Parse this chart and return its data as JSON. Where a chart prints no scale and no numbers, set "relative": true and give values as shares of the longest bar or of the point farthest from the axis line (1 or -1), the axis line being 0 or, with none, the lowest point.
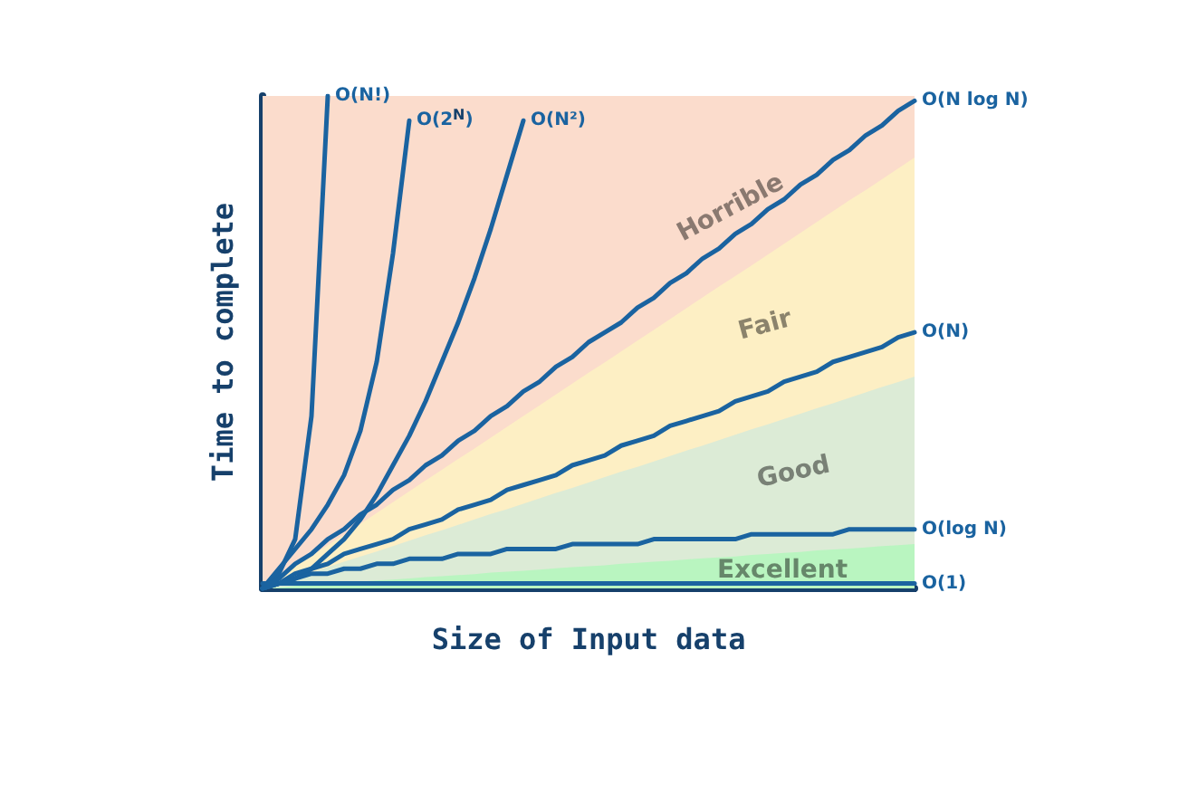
{
  "chart_data": {
    "type": "line",
    "relative": true,
    "xlabel": "Size of Input data",
    "ylabel": "Time to complete",
    "legend": false,
    "grid": false,
    "marker": "none",
    "line_style": "solid",
    "bands": [
      {
        "axis": "y",
        "from": 0,
        "to": 1,
        "label": "Horrible",
        "color": "#fbdccc"
      }
    ],
    "categories": [
      null,
      null,
      null,
      null,
      null,
      null,
      null,
      null,
      null,
      null,
      null,
      null,
      null,
      null,
      null,
      null,
      null,
      null,
      null,
      null,
      null,
      null,
      null,
      null,
      null,
      null,
      null,
      null,
      null,
      null,
      null,
      null,
      null,
      null,
      null,
      null,
      null,
      null,
      null,
      null,
      null
    ],
    "series": [
      {
        "type": "area",
        "name": "Fair",
        "color": "#fdefc4",
        "values": [
          0,
          0.022,
          0.044,
          0.066,
          0.088,
          0.109,
          0.131,
          0.153,
          0.175,
          0.197,
          0.219,
          0.241,
          0.263,
          0.284,
          0.306,
          0.328,
          0.35,
          0.372,
          0.394,
          0.416,
          0.438,
          0.459,
          0.481,
          0.503,
          0.525,
          0.547,
          0.569,
          0.591,
          0.613,
          0.634,
          0.656,
          0.678,
          0.7,
          0.722,
          0.744,
          0.766,
          0.788,
          0.809,
          0.831,
          0.853,
          0.875
        ]
      },
      {
        "type": "area",
        "name": "Good",
        "color": "#dcebd6",
        "values": [
          0,
          0.011,
          0.022,
          0.032,
          0.043,
          0.054,
          0.065,
          0.075,
          0.086,
          0.097,
          0.108,
          0.118,
          0.129,
          0.14,
          0.151,
          0.161,
          0.172,
          0.183,
          0.194,
          0.204,
          0.215,
          0.226,
          0.237,
          0.247,
          0.258,
          0.269,
          0.28,
          0.29,
          0.301,
          0.312,
          0.323,
          0.333,
          0.344,
          0.355,
          0.366,
          0.376,
          0.387,
          0.398,
          0.409,
          0.419,
          0.43
        ]
      },
      {
        "type": "area",
        "name": "Excellent",
        "color": "#b9f5c0",
        "values": [
          0,
          0.002,
          0.005,
          0.007,
          0.009,
          0.011,
          0.014,
          0.016,
          0.018,
          0.02,
          0.023,
          0.025,
          0.027,
          0.029,
          0.032,
          0.034,
          0.036,
          0.038,
          0.041,
          0.043,
          0.045,
          0.047,
          0.05,
          0.052,
          0.054,
          0.056,
          0.059,
          0.061,
          0.063,
          0.065,
          0.068,
          0.07,
          0.072,
          0.074,
          0.077,
          0.079,
          0.081,
          0.083,
          0.086,
          0.088,
          0.09
        ]
      },
      {
        "type": "line",
        "name": "O(N!)",
        "color": "#1a63a0",
        "values": [
          0,
          0.03,
          0.1,
          0.35,
          1,
          null,
          null,
          null,
          null,
          null,
          null,
          null,
          null,
          null,
          null,
          null,
          null,
          null,
          null,
          null,
          null,
          null,
          null,
          null,
          null,
          null,
          null,
          null,
          null,
          null,
          null,
          null,
          null,
          null,
          null,
          null,
          null,
          null,
          null,
          null,
          null
        ]
      },
      {
        "type": "line",
        "name": "O(2$^{N}$)",
        "color": "#1a63a0",
        "values": [
          0,
          0.04,
          0.08,
          0.12,
          0.17,
          0.23,
          0.32,
          0.46,
          0.68,
          0.95,
          null,
          null,
          null,
          null,
          null,
          null,
          null,
          null,
          null,
          null,
          null,
          null,
          null,
          null,
          null,
          null,
          null,
          null,
          null,
          null,
          null,
          null,
          null,
          null,
          null,
          null,
          null,
          null,
          null,
          null,
          null
        ]
      },
      {
        "type": "line",
        "name": "O(N²)",
        "color": "#1a63a0",
        "values": [
          0,
          0.01,
          0.02,
          0.04,
          0.07,
          0.1,
          0.14,
          0.19,
          0.25,
          0.31,
          0.38,
          0.46,
          0.54,
          0.63,
          0.73,
          0.84,
          0.95,
          null,
          null,
          null,
          null,
          null,
          null,
          null,
          null,
          null,
          null,
          null,
          null,
          null,
          null,
          null,
          null,
          null,
          null,
          null,
          null,
          null,
          null,
          null,
          null
        ]
      },
      {
        "type": "line",
        "name": "O(N log N)",
        "color": "#1a63a0",
        "values": [
          0,
          0.02,
          0.05,
          0.07,
          0.1,
          0.12,
          0.15,
          0.17,
          0.2,
          0.22,
          0.25,
          0.27,
          0.3,
          0.32,
          0.35,
          0.37,
          0.4,
          0.42,
          0.45,
          0.47,
          0.5,
          0.52,
          0.54,
          0.57,
          0.59,
          0.62,
          0.64,
          0.67,
          0.69,
          0.72,
          0.74,
          0.77,
          0.79,
          0.82,
          0.84,
          0.87,
          0.89,
          0.92,
          0.94,
          0.97,
          0.99
        ]
      },
      {
        "type": "line",
        "name": "O(N)",
        "color": "#1a63a0",
        "values": [
          0,
          0.01,
          0.03,
          0.04,
          0.05,
          0.07,
          0.08,
          0.09,
          0.1,
          0.12,
          0.13,
          0.14,
          0.16,
          0.17,
          0.18,
          0.2,
          0.21,
          0.22,
          0.23,
          0.25,
          0.26,
          0.27,
          0.29,
          0.3,
          0.31,
          0.33,
          0.34,
          0.35,
          0.36,
          0.38,
          0.39,
          0.4,
          0.42,
          0.43,
          0.44,
          0.46,
          0.47,
          0.48,
          0.49,
          0.51,
          0.52
        ]
      },
      {
        "type": "line",
        "name": "O(log N)",
        "color": "#1a63a0",
        "values": [
          0,
          0.01,
          0.02,
          0.03,
          0.03,
          0.04,
          0.04,
          0.05,
          0.05,
          0.06,
          0.06,
          0.06,
          0.07,
          0.07,
          0.07,
          0.08,
          0.08,
          0.08,
          0.08,
          0.09,
          0.09,
          0.09,
          0.09,
          0.09,
          0.1,
          0.1,
          0.1,
          0.1,
          0.1,
          0.1,
          0.11,
          0.11,
          0.11,
          0.11,
          0.11,
          0.11,
          0.12,
          0.12,
          0.12,
          0.12,
          0.12
        ]
      },
      {
        "type": "line",
        "name": "O(1)",
        "color": "#1a63a0",
        "values": [
          0.01,
          0.01,
          0.01,
          0.01,
          0.01,
          0.01,
          0.01,
          0.01,
          0.01,
          0.01,
          0.01,
          0.01,
          0.01,
          0.01,
          0.01,
          0.01,
          0.01,
          0.01,
          0.01,
          0.01,
          0.01,
          0.01,
          0.01,
          0.01,
          0.01,
          0.01,
          0.01,
          0.01,
          0.01,
          0.01,
          0.01,
          0.01,
          0.01,
          0.01,
          0.01,
          0.01,
          0.01,
          0.01,
          0.01,
          0.01,
          0.01
        ]
      }
    ]
  }
}
